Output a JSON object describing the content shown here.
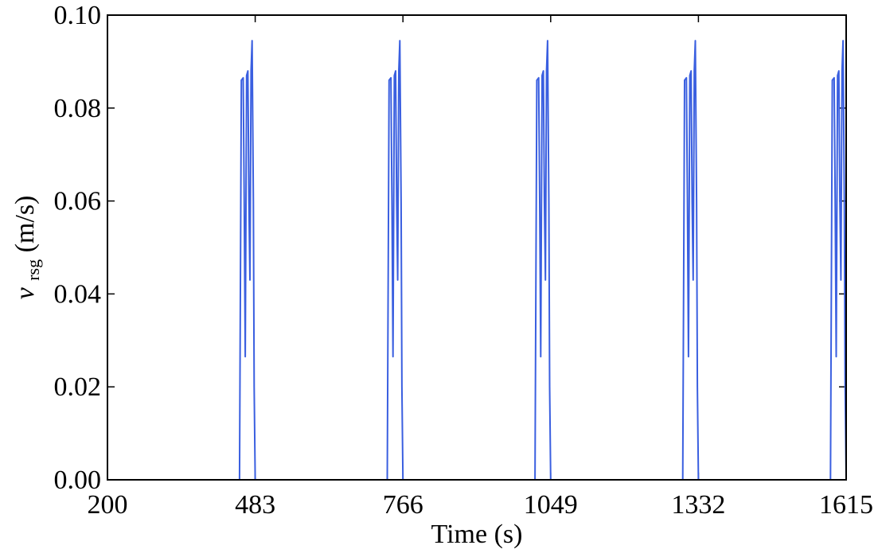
{
  "chart_data": {
    "type": "line",
    "title": "",
    "xlabel": "Time (s)",
    "ylabel": {
      "symbol": "v",
      "subscript": "rsg",
      "unit": "(m/s)"
    },
    "xlim": [
      200,
      1615
    ],
    "ylim": [
      0,
      0.1
    ],
    "xticks": [
      200,
      483,
      766,
      1049,
      1332,
      1615
    ],
    "xtick_labels": [
      "200",
      "483",
      "766",
      "1049",
      "1332",
      "1615"
    ],
    "yticks": [
      0,
      0.02,
      0.04,
      0.06,
      0.08,
      0.1
    ],
    "ytick_labels": [
      "0.00",
      "0.02",
      "0.04",
      "0.06",
      "0.08",
      "0.10"
    ],
    "grid": false,
    "legend": "none",
    "series_color": "#3a5fe0",
    "period": 283,
    "pulse_profile": {
      "t_offset": [
        0,
        3.5,
        7,
        9,
        11,
        13.5,
        16,
        18,
        20,
        22,
        24,
        26.5,
        28,
        30
      ],
      "v": [
        0,
        0.086,
        0.0865,
        0.06,
        0.0265,
        0.087,
        0.088,
        0.06,
        0.043,
        0.088,
        0.0945,
        0.06,
        0.02,
        0
      ]
    },
    "pulse_starts": [
      453,
      736,
      1019,
      1302,
      1585
    ]
  }
}
